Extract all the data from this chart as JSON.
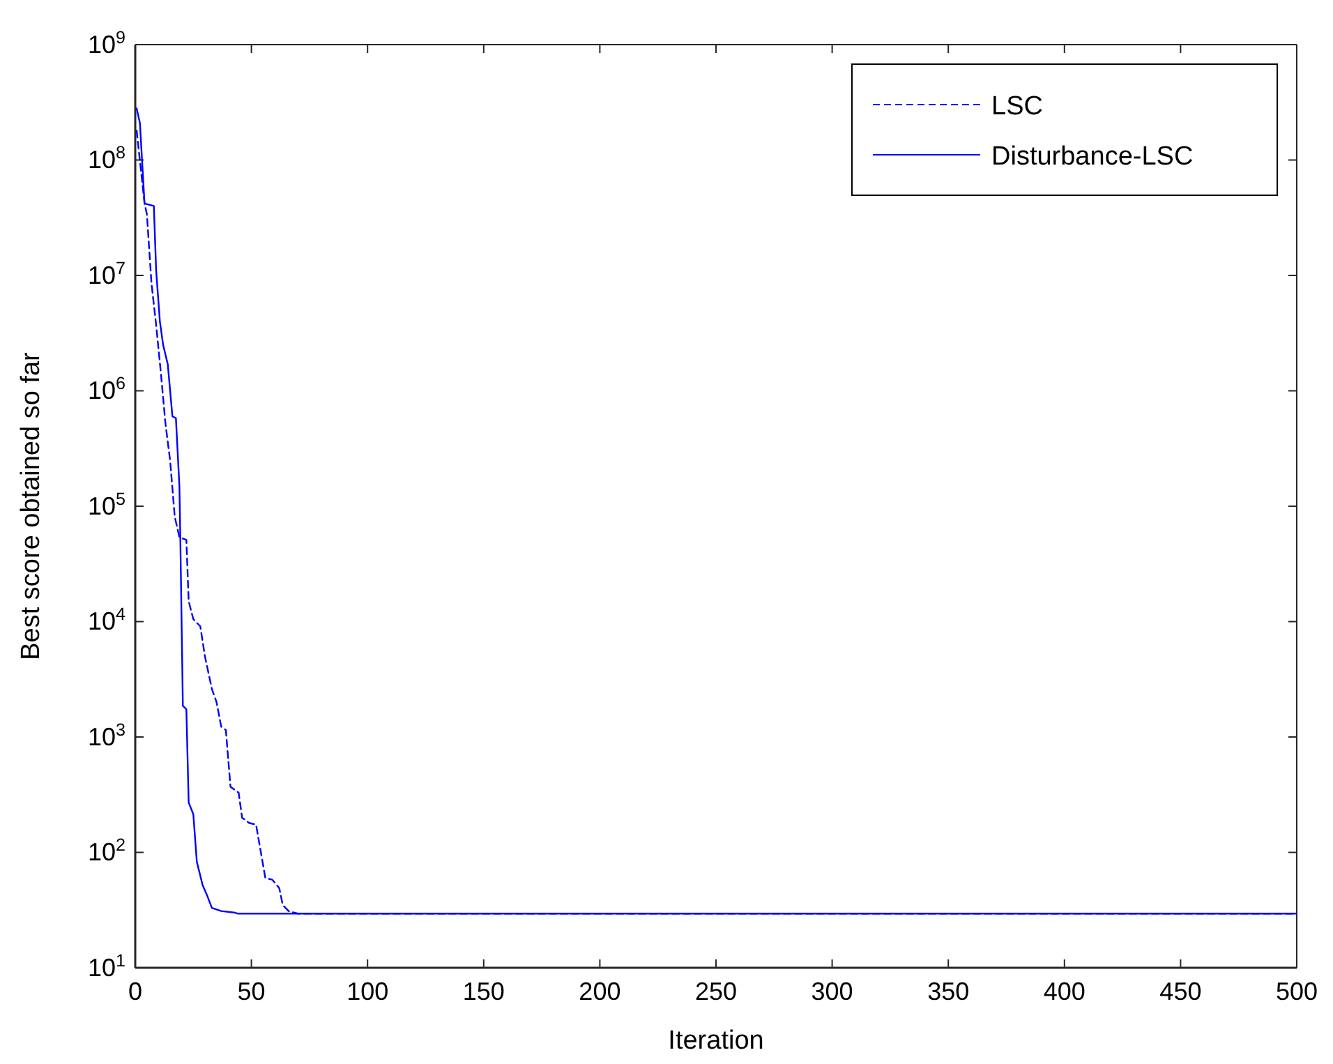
{
  "chart_data": {
    "type": "line",
    "xlabel": "Iteration",
    "ylabel": "Best score obtained so far",
    "log": "y",
    "legend": "top right",
    "grid": false,
    "marker": "none",
    "xlim": [
      0,
      500
    ],
    "xticks": [
      0,
      50,
      100,
      150,
      200,
      250,
      300,
      350,
      400,
      450,
      500
    ],
    "ylim": [
      10,
      1000000000
    ],
    "yticks": [
      {
        "value": 10,
        "label": "10$^{1}$"
      },
      {
        "value": 100,
        "label": "10$^{2}$"
      },
      {
        "value": 1000,
        "label": "10$^{3}$"
      },
      {
        "value": 10000,
        "label": "10$^{4}$"
      },
      {
        "value": 100000,
        "label": "10$^{5}$"
      },
      {
        "value": 1000000,
        "label": "10$^{6}$"
      },
      {
        "value": 10000000,
        "label": "10$^{7}$"
      },
      {
        "value": 100000000,
        "label": "10$^{8}$"
      },
      {
        "value": 1000000000,
        "label": "10$^{9}$"
      }
    ],
    "series": [
      {
        "name": "LSC",
        "color": "#0000ff",
        "line_style": "dashed",
        "x": [
          0.6,
          4,
          5,
          7,
          9,
          11,
          13,
          15,
          17,
          19,
          22,
          23,
          25,
          28,
          30,
          33,
          35,
          37,
          39,
          41,
          44.5,
          46,
          49,
          52,
          56,
          59,
          62,
          63.5,
          66,
          70,
          500
        ],
        "values": [
          180000000,
          42000000,
          34000000,
          8500000,
          3700000,
          1450000,
          520000,
          250000,
          81000,
          54000,
          51000,
          15000,
          10500,
          9100,
          5000,
          2600,
          2000,
          1230,
          1150,
          370,
          330,
          200,
          180,
          174,
          60,
          58,
          49,
          35,
          31,
          29.5,
          29.5
        ]
      },
      {
        "name": "Disturbance-LSC",
        "color": "#0000ff",
        "line_style": "solid",
        "x": [
          0.6,
          2,
          4,
          8,
          9,
          10.6,
          12,
          14,
          16,
          17.5,
          19,
          19.4,
          20.5,
          22,
          23,
          25,
          26.5,
          29,
          31,
          33,
          37,
          43,
          44,
          500
        ],
        "values": [
          280000000,
          210000000,
          42000000,
          40000000,
          11000000,
          4000000,
          2500000,
          1700000,
          600000,
          580000,
          150000,
          54000,
          1860,
          1740,
          270,
          214,
          83,
          52,
          42,
          33,
          31,
          30,
          29.5,
          29.5
        ]
      }
    ]
  }
}
